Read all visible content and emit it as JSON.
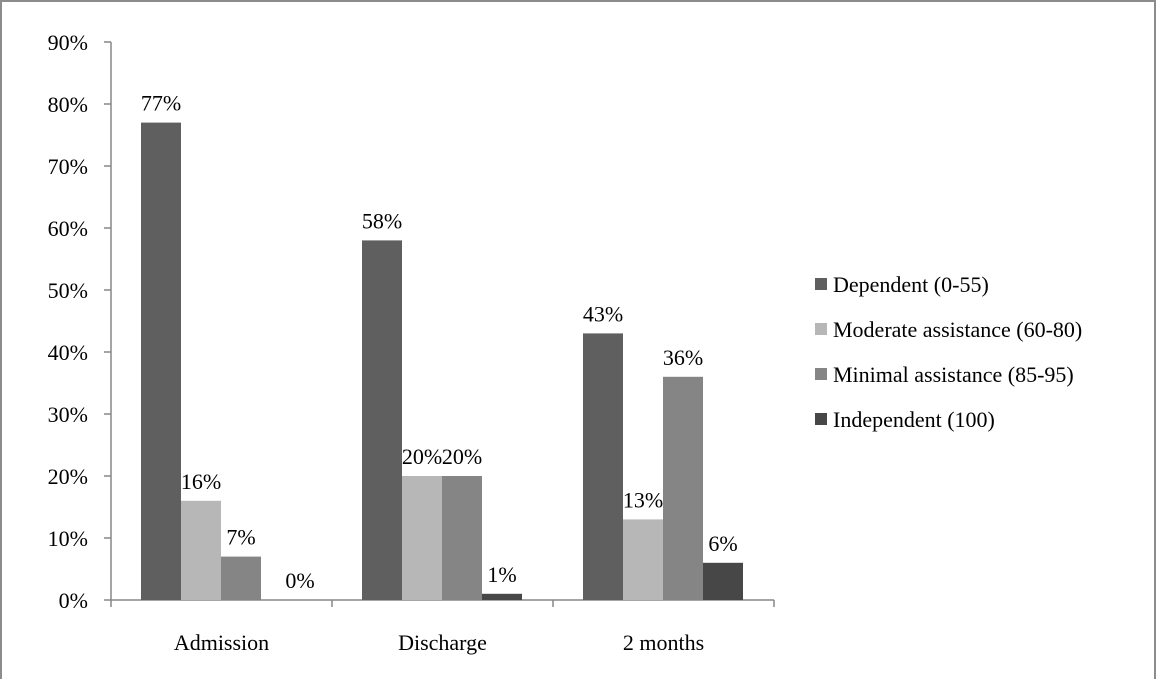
{
  "chart_data": {
    "type": "bar",
    "categories": [
      "Admission",
      "Discharge",
      "2 months"
    ],
    "series": [
      {
        "name": "Dependent (0-55)",
        "values": [
          77,
          58,
          43
        ],
        "labels": [
          "77%",
          "58%",
          "43%"
        ],
        "color": "#5f5f5f"
      },
      {
        "name": "Moderate assistance (60-80)",
        "values": [
          16,
          20,
          13
        ],
        "labels": [
          "16%",
          "20%",
          "13%"
        ],
        "color": "#b7b7b7"
      },
      {
        "name": "Minimal assistance (85-95)",
        "values": [
          7,
          20,
          36
        ],
        "labels": [
          "7%",
          "20%",
          "36%"
        ],
        "color": "#858585"
      },
      {
        "name": "Independent (100)",
        "values": [
          0,
          1,
          6
        ],
        "labels": [
          "0%",
          "1%",
          "6%"
        ],
        "color": "#474747"
      }
    ],
    "y_ticks": [
      "0%",
      "10%",
      "20%",
      "30%",
      "40%",
      "50%",
      "60%",
      "70%",
      "80%",
      "90%"
    ],
    "ylim": [
      0,
      90
    ],
    "grid": false,
    "legend_position": "right",
    "title": "",
    "xlabel": "",
    "ylabel": ""
  }
}
